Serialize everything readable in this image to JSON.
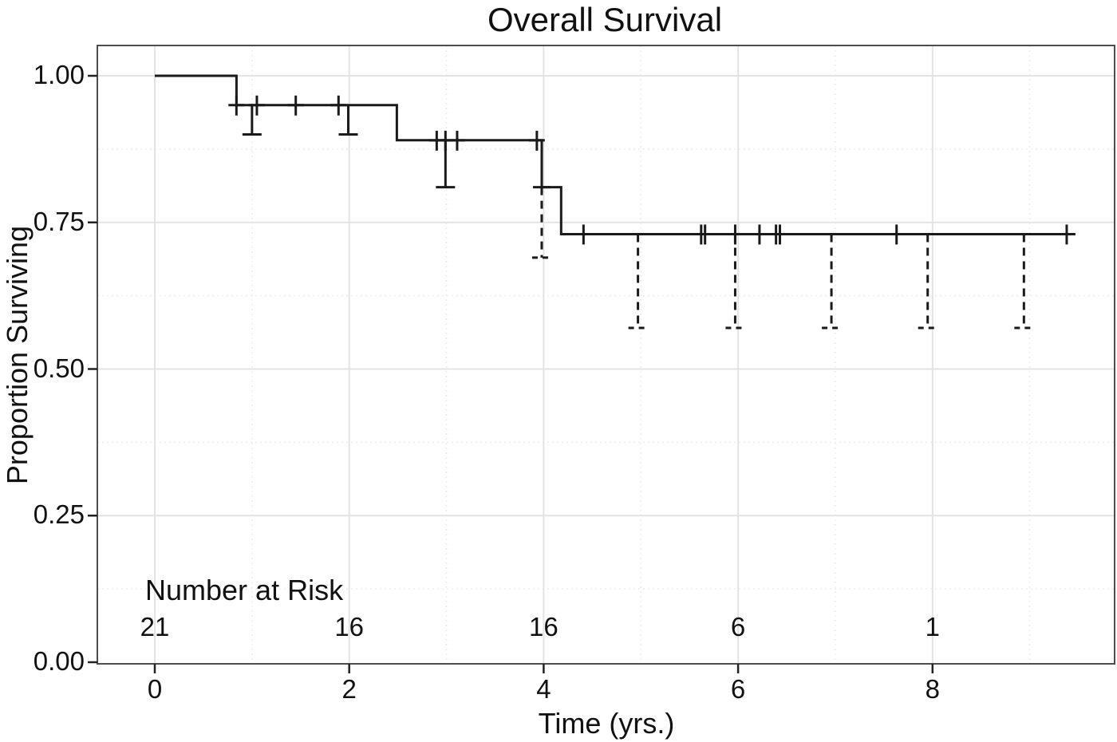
{
  "title": "Overall Survival",
  "colors": {
    "curve": "#1a1a1a",
    "grid_major": "#e3e3e3",
    "grid_minor": "#ededed",
    "panel_border": "#4d4d4d",
    "axis_tick": "#222222",
    "text": "#111111"
  },
  "chart_data": {
    "type": "line",
    "subtype": "kaplan-meier-step",
    "title": "Overall Survival",
    "xlabel": "Time (yrs.)",
    "ylabel": "Proportion Surviving",
    "xlim": [
      -0.59,
      9.87
    ],
    "ylim": [
      0,
      1.05
    ],
    "grid": "major-and-minor",
    "legend_position": "none",
    "x_ticks": {
      "values": [
        0,
        2,
        4,
        6,
        8
      ],
      "labels": [
        "0",
        "2",
        "4",
        "6",
        "8"
      ]
    },
    "y_ticks": {
      "values": [
        0,
        0.25,
        0.5,
        0.75,
        1.0
      ],
      "labels": [
        "0.00",
        "0.25",
        "0.50",
        "0.75",
        "1.00"
      ]
    },
    "x_minor": [
      1,
      3,
      5,
      7,
      9
    ],
    "y_minor": [
      0.125,
      0.375,
      0.625,
      0.875
    ],
    "series": [
      {
        "name": "Overall Survival",
        "step_outline": [
          [
            0.0,
            1.0
          ],
          [
            0.84,
            1.0
          ],
          [
            0.84,
            0.95
          ],
          [
            2.49,
            0.95
          ],
          [
            2.49,
            0.89
          ],
          [
            3.98,
            0.89
          ],
          [
            3.98,
            0.81
          ],
          [
            4.18,
            0.81
          ],
          [
            4.18,
            0.73
          ],
          [
            9.47,
            0.73
          ]
        ]
      }
    ],
    "censor_marks": [
      {
        "t": 0.84,
        "s": 0.95
      },
      {
        "t": 1.05,
        "s": 0.95
      },
      {
        "t": 1.45,
        "s": 0.95
      },
      {
        "t": 1.89,
        "s": 0.95
      },
      {
        "t": 2.9,
        "s": 0.89
      },
      {
        "t": 2.99,
        "s": 0.89
      },
      {
        "t": 3.11,
        "s": 0.89
      },
      {
        "t": 3.93,
        "s": 0.89
      },
      {
        "t": 4.41,
        "s": 0.73
      },
      {
        "t": 5.62,
        "s": 0.73
      },
      {
        "t": 5.66,
        "s": 0.73
      },
      {
        "t": 5.97,
        "s": 0.73
      },
      {
        "t": 6.22,
        "s": 0.73
      },
      {
        "t": 6.39,
        "s": 0.73
      },
      {
        "t": 6.43,
        "s": 0.73
      },
      {
        "t": 7.63,
        "s": 0.73
      },
      {
        "t": 9.38,
        "s": 0.73
      }
    ],
    "lower_ci_whiskers": [
      {
        "t": 1.0,
        "from": 0.95,
        "to": 0.9,
        "style": "solid"
      },
      {
        "t": 1.99,
        "from": 0.95,
        "to": 0.9,
        "style": "solid"
      },
      {
        "t": 2.99,
        "from": 0.89,
        "to": 0.81,
        "style": "solid"
      },
      {
        "t": 3.98,
        "from": 0.81,
        "to": 0.69,
        "style": "dashed",
        "top_cap": true
      },
      {
        "t": 4.97,
        "from": 0.73,
        "to": 0.57,
        "style": "dashed"
      },
      {
        "t": 5.97,
        "from": 0.73,
        "to": 0.57,
        "style": "dashed"
      },
      {
        "t": 6.96,
        "from": 0.73,
        "to": 0.57,
        "style": "dashed"
      },
      {
        "t": 7.95,
        "from": 0.73,
        "to": 0.57,
        "style": "dashed"
      },
      {
        "t": 8.94,
        "from": 0.73,
        "to": 0.57,
        "style": "dashed"
      }
    ],
    "number_at_risk": {
      "label": "Number at Risk",
      "times": [
        0,
        2,
        4,
        6,
        8
      ],
      "counts": [
        "21",
        "16",
        "16",
        "6",
        "1"
      ]
    }
  }
}
